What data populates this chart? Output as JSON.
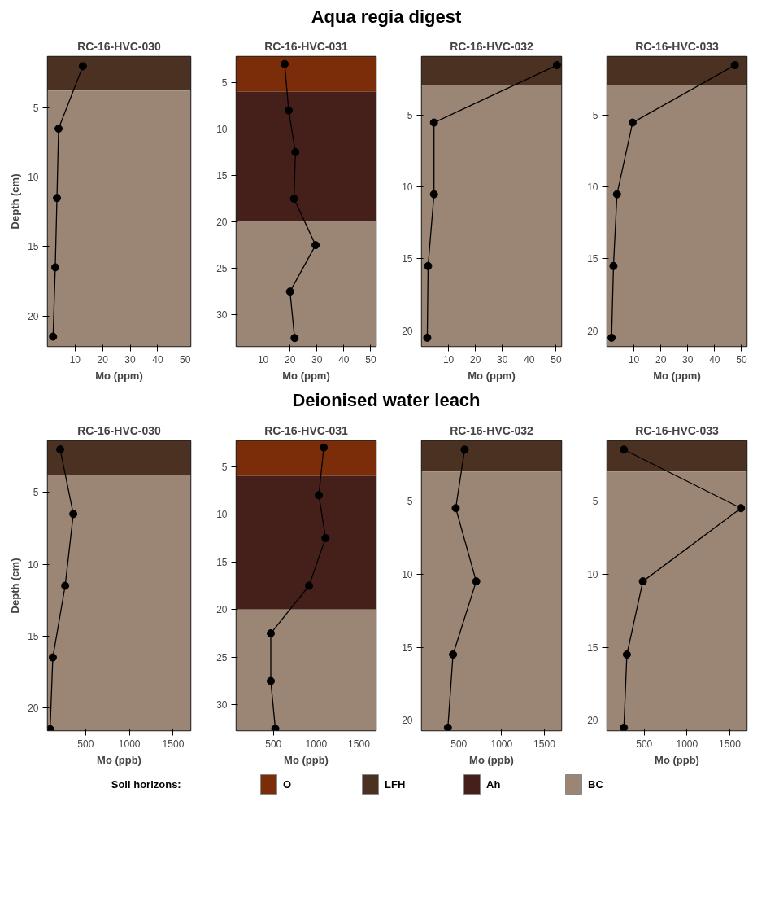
{
  "chart_data": [
    {
      "type": "line",
      "title": "RC-16-HVC-030",
      "annotations": [
        "Aqua regia digest"
      ],
      "xlabel": "Mo (ppm)",
      "ylabel": "Depth (cm)",
      "marker": "circle",
      "line_style": "solid",
      "color": "#000000",
      "grid": false,
      "x": [
        12.8,
        4,
        3.4,
        2.8,
        2
      ],
      "values": [
        2,
        6.5,
        11.5,
        16.5,
        21.5
      ],
      "xlim": [
        0,
        52
      ],
      "xticks": [
        10,
        20,
        30,
        40,
        50
      ],
      "ylim": [
        22.2,
        1.3
      ],
      "yticks": [
        5,
        10,
        15,
        20
      ],
      "bands": [
        {
          "axis": "y",
          "from": 1.3,
          "to": 3.75,
          "color": "#4b3122"
        },
        {
          "axis": "y",
          "from": 3.75,
          "to": 22.2,
          "color": "#9b8676"
        }
      ]
    },
    {
      "type": "line",
      "title": "RC-16-HVC-031",
      "xlabel": "Mo (ppm)",
      "marker": "circle",
      "line_style": "solid",
      "color": "#000000",
      "grid": false,
      "x": [
        18,
        19.5,
        22,
        21.5,
        29.5,
        20,
        21.7
      ],
      "values": [
        3,
        8,
        12.5,
        17.5,
        22.5,
        27.5,
        32.5
      ],
      "xlim": [
        0,
        52
      ],
      "xticks": [
        10,
        20,
        30,
        40,
        50
      ],
      "ylim": [
        33.4,
        2.2
      ],
      "yticks": [
        5,
        10,
        15,
        20,
        25,
        30
      ],
      "bands": [
        {
          "axis": "y",
          "from": 2.2,
          "to": 6,
          "color": "#7b2d0a"
        },
        {
          "axis": "y",
          "from": 6,
          "to": 20,
          "color": "#45201b"
        },
        {
          "axis": "y",
          "from": 20,
          "to": 33.4,
          "color": "#9b8676"
        }
      ]
    },
    {
      "type": "line",
      "title": "RC-16-HVC-032",
      "xlabel": "Mo (ppm)",
      "marker": "circle",
      "line_style": "solid",
      "color": "#000000",
      "grid": false,
      "x": [
        50.3,
        4.6,
        4.6,
        2.4,
        2.1
      ],
      "values": [
        1.5,
        5.5,
        10.5,
        15.5,
        20.5
      ],
      "xlim": [
        0,
        52
      ],
      "xticks": [
        10,
        20,
        30,
        40,
        50
      ],
      "ylim": [
        21.1,
        0.9
      ],
      "yticks": [
        5,
        10,
        15,
        20
      ],
      "bands": [
        {
          "axis": "y",
          "from": 0.9,
          "to": 2.9,
          "color": "#4b3122"
        },
        {
          "axis": "y",
          "from": 2.9,
          "to": 21.1,
          "color": "#9b8676"
        }
      ]
    },
    {
      "type": "line",
      "title": "RC-16-HVC-033",
      "xlabel": "Mo (ppm)",
      "marker": "circle",
      "line_style": "solid",
      "color": "#000000",
      "grid": false,
      "x": [
        47.5,
        9.5,
        3.7,
        2.4,
        1.7
      ],
      "values": [
        1.5,
        5.5,
        10.5,
        15.5,
        20.5
      ],
      "xlim": [
        0,
        52
      ],
      "xticks": [
        10,
        20,
        30,
        40,
        50
      ],
      "ylim": [
        21.1,
        0.9
      ],
      "yticks": [
        5,
        10,
        15,
        20
      ],
      "bands": [
        {
          "axis": "y",
          "from": 0.9,
          "to": 2.9,
          "color": "#4b3122"
        },
        {
          "axis": "y",
          "from": 2.9,
          "to": 21.1,
          "color": "#9b8676"
        }
      ]
    },
    {
      "type": "line",
      "title": "RC-16-HVC-030",
      "annotations": [
        "Deionised water leach"
      ],
      "xlabel": "Mo (ppb)",
      "ylabel": "Depth (cm)",
      "marker": "circle",
      "line_style": "solid",
      "color": "#000000",
      "grid": false,
      "x": [
        209,
        359,
        266,
        125,
        94
      ],
      "values": [
        2,
        6.5,
        11.5,
        16.5,
        21.5
      ],
      "xlim": [
        65,
        1700
      ],
      "xticks": [
        500,
        1000,
        1500
      ],
      "ylim": [
        21.6,
        1.4
      ],
      "yticks": [
        5,
        10,
        15,
        20
      ],
      "bands": [
        {
          "axis": "y",
          "from": 1.4,
          "to": 3.75,
          "color": "#4b3122"
        },
        {
          "axis": "y",
          "from": 3.75,
          "to": 21.6,
          "color": "#9b8676"
        }
      ]
    },
    {
      "type": "line",
      "title": "RC-16-HVC-031",
      "xlabel": "Mo (ppb)",
      "marker": "circle",
      "line_style": "solid",
      "color": "#000000",
      "grid": false,
      "x": [
        1088,
        1031,
        1109,
        916,
        469,
        469,
        522
      ],
      "values": [
        3,
        8,
        12.5,
        17.5,
        22.5,
        27.5,
        32.5
      ],
      "xlim": [
        65,
        1700
      ],
      "xticks": [
        500,
        1000,
        1500
      ],
      "ylim": [
        32.7,
        2.3
      ],
      "yticks": [
        5,
        10,
        15,
        20,
        25,
        30
      ],
      "bands": [
        {
          "axis": "y",
          "from": 2.3,
          "to": 6,
          "color": "#7b2d0a"
        },
        {
          "axis": "y",
          "from": 6,
          "to": 20,
          "color": "#45201b"
        },
        {
          "axis": "y",
          "from": 20,
          "to": 32.7,
          "color": "#9b8676"
        }
      ]
    },
    {
      "type": "line",
      "title": "RC-16-HVC-032",
      "xlabel": "Mo (ppb)",
      "marker": "circle",
      "line_style": "solid",
      "color": "#000000",
      "grid": false,
      "x": [
        568,
        464,
        703,
        432,
        372
      ],
      "values": [
        1.5,
        5.5,
        10.5,
        15.5,
        20.5
      ],
      "xlim": [
        65,
        1700
      ],
      "xticks": [
        500,
        1000,
        1500
      ],
      "ylim": [
        20.7,
        0.9
      ],
      "yticks": [
        5,
        10,
        15,
        20
      ],
      "bands": [
        {
          "axis": "y",
          "from": 0.9,
          "to": 3,
          "color": "#4b3122"
        },
        {
          "axis": "y",
          "from": 3,
          "to": 20.7,
          "color": "#9b8676"
        }
      ]
    },
    {
      "type": "line",
      "title": "RC-16-HVC-033",
      "xlabel": "Mo (ppb)",
      "marker": "circle",
      "line_style": "solid",
      "color": "#000000",
      "grid": false,
      "x": [
        262,
        1631,
        484,
        297,
        262
      ],
      "values": [
        1.5,
        5.5,
        10.5,
        15.5,
        20.5
      ],
      "xlim": [
        65,
        1700
      ],
      "xticks": [
        500,
        1000,
        1500
      ],
      "ylim": [
        20.7,
        0.9
      ],
      "yticks": [
        5,
        10,
        15,
        20
      ],
      "bands": [
        {
          "axis": "y",
          "from": 0.9,
          "to": 3,
          "color": "#4b3122"
        },
        {
          "axis": "y",
          "from": 3,
          "to": 20.7,
          "color": "#9b8676"
        }
      ]
    },
    {
      "type": "other",
      "title": "Soil horizons:",
      "categories": [
        "O",
        "LFH",
        "Ah",
        "BC"
      ],
      "colors": [
        "#7b2d0a",
        "#4b3122",
        "#45201b",
        "#9b8676"
      ]
    }
  ]
}
